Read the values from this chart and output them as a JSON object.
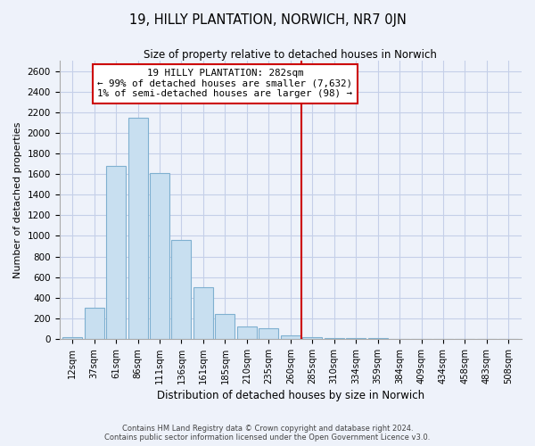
{
  "title": "19, HILLY PLANTATION, NORWICH, NR7 0JN",
  "subtitle": "Size of property relative to detached houses in Norwich",
  "xlabel": "Distribution of detached houses by size in Norwich",
  "ylabel": "Number of detached properties",
  "bar_labels": [
    "12sqm",
    "37sqm",
    "61sqm",
    "86sqm",
    "111sqm",
    "136sqm",
    "161sqm",
    "185sqm",
    "210sqm",
    "235sqm",
    "260sqm",
    "285sqm",
    "310sqm",
    "334sqm",
    "359sqm",
    "384sqm",
    "409sqm",
    "434sqm",
    "458sqm",
    "483sqm",
    "508sqm"
  ],
  "bar_values": [
    20,
    300,
    1680,
    2150,
    1610,
    960,
    505,
    245,
    125,
    100,
    35,
    20,
    10,
    8,
    5,
    3,
    2,
    1,
    1,
    1,
    1
  ],
  "bar_color": "#c8dff0",
  "bar_edge_color": "#7fb0d0",
  "vline_x_index": 11,
  "vline_color": "#cc0000",
  "annotation_title": "19 HILLY PLANTATION: 282sqm",
  "annotation_line1": "← 99% of detached houses are smaller (7,632)",
  "annotation_line2": "1% of semi-detached houses are larger (98) →",
  "annotation_box_color": "#ffffff",
  "annotation_box_edge": "#cc0000",
  "ylim": [
    0,
    2700
  ],
  "yticks": [
    0,
    200,
    400,
    600,
    800,
    1000,
    1200,
    1400,
    1600,
    1800,
    2000,
    2200,
    2400,
    2600
  ],
  "footer1": "Contains HM Land Registry data © Crown copyright and database right 2024.",
  "footer2": "Contains public sector information licensed under the Open Government Licence v3.0.",
  "bg_color": "#eef2fa",
  "grid_color": "#c5cfe8"
}
